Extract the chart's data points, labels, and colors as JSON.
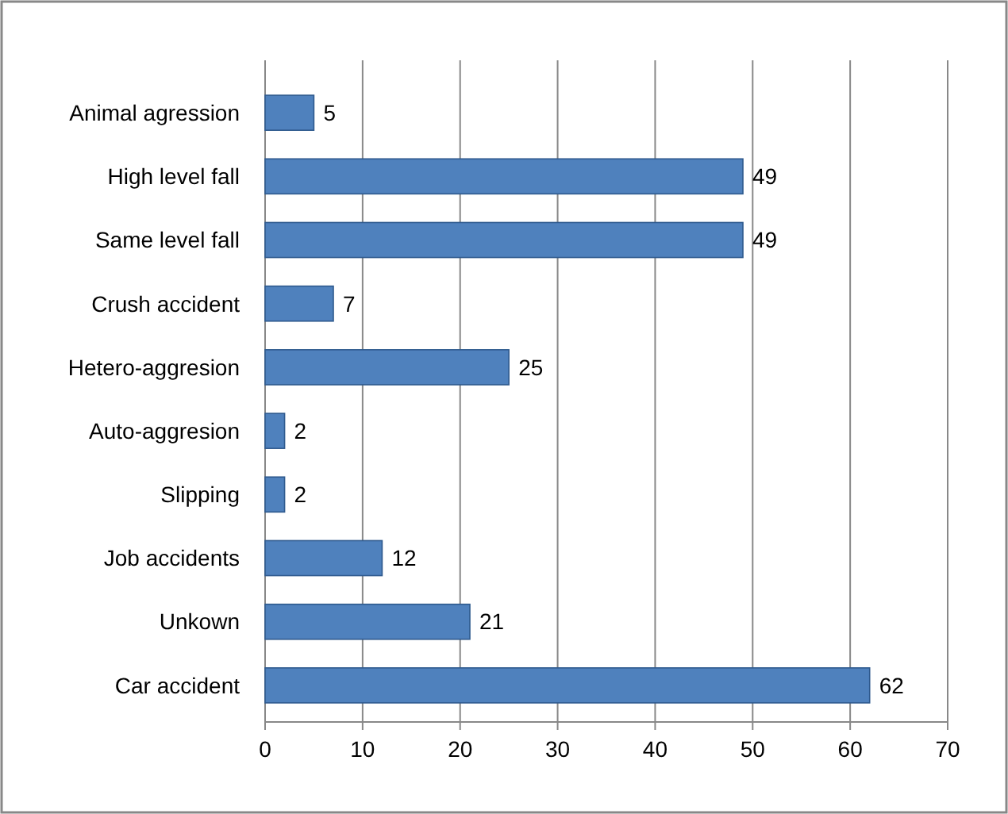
{
  "chart_data": {
    "type": "bar",
    "orientation": "horizontal",
    "categories": [
      "Animal agression",
      "High level fall",
      "Same level fall",
      "Crush accident",
      "Hetero-aggresion",
      "Auto-aggresion",
      "Slipping",
      "Job accidents",
      "Unkown",
      "Car accident"
    ],
    "values": [
      5,
      49,
      49,
      7,
      25,
      2,
      2,
      12,
      21,
      62
    ],
    "color": "#4f81bd",
    "xlim": [
      0,
      70
    ],
    "xticks": [
      0,
      10,
      20,
      30,
      40,
      50,
      60,
      70
    ],
    "grid": "x",
    "data_labels": true
  }
}
